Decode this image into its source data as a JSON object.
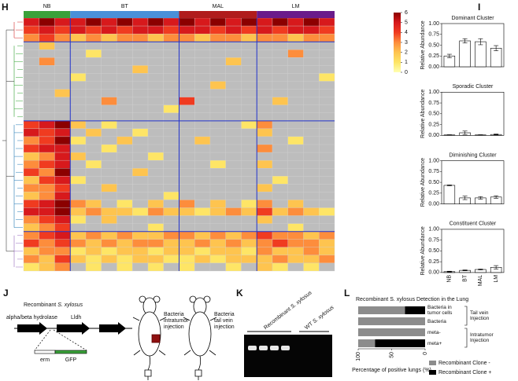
{
  "panel_labels": [
    "H",
    "I",
    "J",
    "K",
    "L"
  ],
  "chart_data": [
    {
      "type": "heatmap",
      "groups": [
        {
          "name": "NB",
          "color": "#3aa13a",
          "columns": 3
        },
        {
          "name": "BT",
          "color": "#4a90d9",
          "columns": 7
        },
        {
          "name": "MAL",
          "color": "#b01c1c",
          "columns": 5
        },
        {
          "name": "LM",
          "color": "#6a1b8a",
          "columns": 5
        }
      ],
      "clim": [
        0,
        6
      ],
      "colorbar_ticks": [
        0,
        1,
        2,
        3,
        4,
        5,
        6
      ],
      "colors": [
        "#ffffb2",
        "#fee566",
        "#fec44f",
        "#fd8d3c",
        "#f03b20",
        "#d7191c",
        "#8b0000"
      ],
      "missing_color": "#bdbdbd",
      "values": [
        [
          5,
          6,
          5,
          5,
          6,
          5,
          6,
          5,
          6,
          5,
          6,
          5,
          6,
          5,
          6,
          5,
          6,
          5,
          6,
          5
        ],
        [
          4,
          5,
          4,
          5,
          4,
          5,
          4,
          5,
          5,
          4,
          5,
          5,
          4,
          5,
          4,
          5,
          4,
          5,
          5,
          4
        ],
        [
          3,
          4,
          3,
          2,
          3,
          2,
          3,
          3,
          2,
          3,
          3,
          2,
          3,
          3,
          2,
          3,
          3,
          2,
          3,
          3
        ],
        [
          null,
          2,
          null,
          null,
          null,
          null,
          null,
          null,
          null,
          null,
          null,
          null,
          null,
          null,
          null,
          null,
          null,
          null,
          null,
          null
        ],
        [
          null,
          null,
          null,
          null,
          1,
          null,
          null,
          null,
          null,
          null,
          null,
          null,
          null,
          null,
          null,
          null,
          null,
          3,
          null,
          null
        ],
        [
          null,
          3,
          null,
          null,
          null,
          null,
          null,
          null,
          null,
          null,
          null,
          null,
          null,
          2,
          null,
          null,
          null,
          null,
          null,
          null
        ],
        [
          null,
          null,
          null,
          null,
          null,
          null,
          null,
          2,
          null,
          null,
          null,
          null,
          null,
          null,
          null,
          null,
          null,
          null,
          null,
          null
        ],
        [
          null,
          null,
          null,
          1,
          null,
          null,
          null,
          null,
          null,
          null,
          null,
          null,
          null,
          null,
          null,
          null,
          null,
          null,
          null,
          1
        ],
        [
          null,
          null,
          null,
          null,
          null,
          null,
          null,
          null,
          null,
          null,
          null,
          null,
          2,
          null,
          null,
          null,
          null,
          null,
          null,
          null
        ],
        [
          null,
          null,
          2,
          null,
          null,
          null,
          null,
          null,
          null,
          null,
          null,
          null,
          null,
          null,
          null,
          null,
          null,
          null,
          null,
          null
        ],
        [
          null,
          null,
          null,
          null,
          null,
          3,
          null,
          null,
          null,
          null,
          4,
          null,
          null,
          null,
          null,
          null,
          2,
          null,
          null,
          null
        ],
        [
          null,
          null,
          null,
          null,
          null,
          null,
          null,
          null,
          null,
          1,
          null,
          null,
          null,
          null,
          null,
          null,
          null,
          null,
          null,
          null
        ],
        [
          null,
          null,
          null,
          null,
          null,
          null,
          null,
          null,
          null,
          null,
          null,
          null,
          null,
          null,
          null,
          null,
          null,
          null,
          null,
          null
        ],
        [
          4,
          5,
          6,
          2,
          null,
          1,
          null,
          null,
          null,
          null,
          null,
          null,
          null,
          null,
          1,
          3,
          null,
          null,
          null,
          null
        ],
        [
          5,
          4,
          5,
          null,
          2,
          null,
          null,
          1,
          null,
          null,
          null,
          null,
          null,
          null,
          null,
          2,
          null,
          null,
          null,
          null
        ],
        [
          3,
          4,
          6,
          1,
          null,
          null,
          2,
          null,
          null,
          null,
          null,
          2,
          null,
          null,
          null,
          null,
          null,
          1,
          null,
          null
        ],
        [
          4,
          5,
          5,
          null,
          null,
          1,
          null,
          null,
          null,
          null,
          null,
          null,
          null,
          null,
          null,
          3,
          null,
          null,
          null,
          null
        ],
        [
          2,
          3,
          5,
          2,
          null,
          null,
          null,
          null,
          1,
          null,
          null,
          null,
          null,
          null,
          null,
          null,
          null,
          null,
          null,
          null
        ],
        [
          3,
          4,
          5,
          null,
          1,
          null,
          null,
          null,
          null,
          null,
          null,
          null,
          1,
          null,
          null,
          2,
          null,
          null,
          null,
          null
        ],
        [
          4,
          3,
          6,
          null,
          null,
          null,
          null,
          2,
          null,
          null,
          null,
          null,
          null,
          null,
          null,
          null,
          null,
          null,
          null,
          null
        ],
        [
          2,
          4,
          5,
          1,
          null,
          null,
          null,
          null,
          null,
          null,
          null,
          null,
          null,
          null,
          null,
          null,
          1,
          null,
          null,
          null
        ],
        [
          3,
          3,
          4,
          null,
          null,
          2,
          null,
          null,
          null,
          null,
          null,
          null,
          null,
          null,
          null,
          2,
          null,
          null,
          null,
          null
        ],
        [
          2,
          3,
          5,
          null,
          null,
          null,
          null,
          null,
          null,
          1,
          null,
          null,
          null,
          null,
          null,
          null,
          null,
          null,
          null,
          null
        ],
        [
          4,
          5,
          6,
          3,
          2,
          null,
          1,
          null,
          2,
          null,
          3,
          null,
          2,
          null,
          1,
          3,
          null,
          2,
          null,
          null
        ],
        [
          5,
          5,
          6,
          2,
          3,
          2,
          2,
          1,
          3,
          2,
          2,
          1,
          2,
          3,
          2,
          4,
          2,
          3,
          2,
          1
        ],
        [
          3,
          4,
          5,
          1,
          null,
          2,
          null,
          null,
          null,
          null,
          null,
          null,
          null,
          null,
          null,
          2,
          null,
          null,
          null,
          null
        ],
        [
          2,
          3,
          4,
          null,
          null,
          null,
          null,
          null,
          1,
          null,
          null,
          null,
          null,
          null,
          null,
          null,
          null,
          1,
          null,
          null
        ],
        [
          3,
          4,
          5,
          2,
          3,
          2,
          3,
          2,
          2,
          3,
          3,
          2,
          3,
          2,
          3,
          4,
          3,
          3,
          2,
          3
        ],
        [
          4,
          3,
          4,
          3,
          2,
          3,
          2,
          3,
          3,
          2,
          2,
          3,
          2,
          3,
          2,
          3,
          4,
          3,
          3,
          2
        ],
        [
          2,
          3,
          3,
          1,
          2,
          1,
          2,
          2,
          1,
          2,
          2,
          1,
          2,
          2,
          1,
          3,
          2,
          2,
          3,
          2
        ],
        [
          3,
          2,
          4,
          2,
          1,
          2,
          1,
          2,
          2,
          1,
          1,
          2,
          1,
          2,
          2,
          2,
          3,
          2,
          2,
          3
        ],
        [
          1,
          2,
          3,
          null,
          1,
          null,
          1,
          null,
          1,
          null,
          1,
          null,
          null,
          1,
          null,
          2,
          1,
          null,
          1,
          null
        ]
      ]
    },
    {
      "type": "bar",
      "title": "Dominant Cluster",
      "title_color": "#c62828",
      "y_label": "Relative Abundance",
      "values": [
        0.25,
        0.6,
        0.58,
        0.43
      ],
      "errors": [
        0.04,
        0.05,
        0.07,
        0.06
      ],
      "ylim": [
        0,
        1
      ],
      "yticks": [
        {
          "value": 0,
          "label": "0.00"
        },
        {
          "value": 0.25,
          "label": "0.25"
        },
        {
          "value": 0.5,
          "label": "0.50"
        },
        {
          "value": 0.75,
          "label": "0.75"
        },
        {
          "value": 1,
          "label": "1.00"
        }
      ]
    },
    {
      "type": "bar",
      "title": "Sporadic Cluster",
      "title_color": "#2e7d32",
      "y_label": "Relative Abundance",
      "values": [
        0.01,
        0.06,
        0.01,
        0.02
      ],
      "errors": [
        0.005,
        0.04,
        0.005,
        0.01
      ],
      "ylim": [
        0,
        1
      ],
      "yticks": [
        {
          "value": 0,
          "label": "0.00"
        },
        {
          "value": 0.25,
          "label": "0.25"
        },
        {
          "value": 0.5,
          "label": "0.50"
        },
        {
          "value": 0.75,
          "label": "0.75"
        },
        {
          "value": 1,
          "label": "1.00"
        }
      ]
    },
    {
      "type": "bar",
      "title": "Diminishing Cluster",
      "title_color": "#2f7fd0",
      "y_label": "Relative Abundance",
      "values": [
        0.43,
        0.14,
        0.14,
        0.16
      ],
      "errors": [
        0.01,
        0.04,
        0.03,
        0.03
      ],
      "ylim": [
        0,
        1
      ],
      "yticks": [
        {
          "value": 0,
          "label": "0.00"
        },
        {
          "value": 0.25,
          "label": "0.25"
        },
        {
          "value": 0.5,
          "label": "0.50"
        },
        {
          "value": 0.75,
          "label": "0.75"
        },
        {
          "value": 1,
          "label": "1.00"
        }
      ]
    },
    {
      "type": "bar",
      "title": "Constituent Cluster",
      "title_color": "#6a1b8a",
      "y_label": "Relative Abundance",
      "categories": [
        "NB",
        "BT",
        "MAL",
        "LM"
      ],
      "values": [
        0.02,
        0.05,
        0.07,
        0.12
      ],
      "errors": [
        0.01,
        0.01,
        0.01,
        0.04
      ],
      "ylim": [
        0,
        1
      ],
      "yticks": [
        {
          "value": 0,
          "label": "0.00"
        },
        {
          "value": 0.25,
          "label": "0.25"
        },
        {
          "value": 0.5,
          "label": "0.50"
        },
        {
          "value": 0.75,
          "label": "0.75"
        },
        {
          "value": 1,
          "label": "1.00"
        }
      ]
    },
    {
      "type": "bar",
      "orientation": "horizontal",
      "stacked": true,
      "title": "Recombinant S. xylosus Detection in the Lung",
      "categories": [
        "Bacteria in tumor cells",
        "Bacteria",
        "meta-",
        "meta+"
      ],
      "group_labels": [
        "Tail vein Injection",
        "Intratumor Injection"
      ],
      "series": [
        {
          "name": "Recombinant Clone -",
          "color": "#8c8c8c",
          "values": [
            70,
            100,
            100,
            25
          ]
        },
        {
          "name": "Recombinant Clone +",
          "color": "#000000",
          "values": [
            30,
            0,
            0,
            75
          ]
        }
      ],
      "xlim": [
        100,
        0
      ],
      "xticks": [
        100,
        50,
        0
      ],
      "x_label": "Percentage of positive lungs (%)"
    }
  ],
  "diagram": {
    "title": [
      "Recombinant",
      "S. xylosus"
    ],
    "genes": [
      "alpha/beta hydrolase",
      "Lldh"
    ],
    "insert": [
      "erm",
      "GFP"
    ],
    "injections": [
      [
        "Bacteria",
        "intratumor",
        "injection"
      ],
      [
        "Bacteria",
        "tail vein",
        "injection"
      ]
    ]
  },
  "gel": {
    "lanes": [
      [
        "Recombinant",
        "S. xylosus"
      ],
      [
        "WT",
        "S. xylosus"
      ]
    ]
  }
}
